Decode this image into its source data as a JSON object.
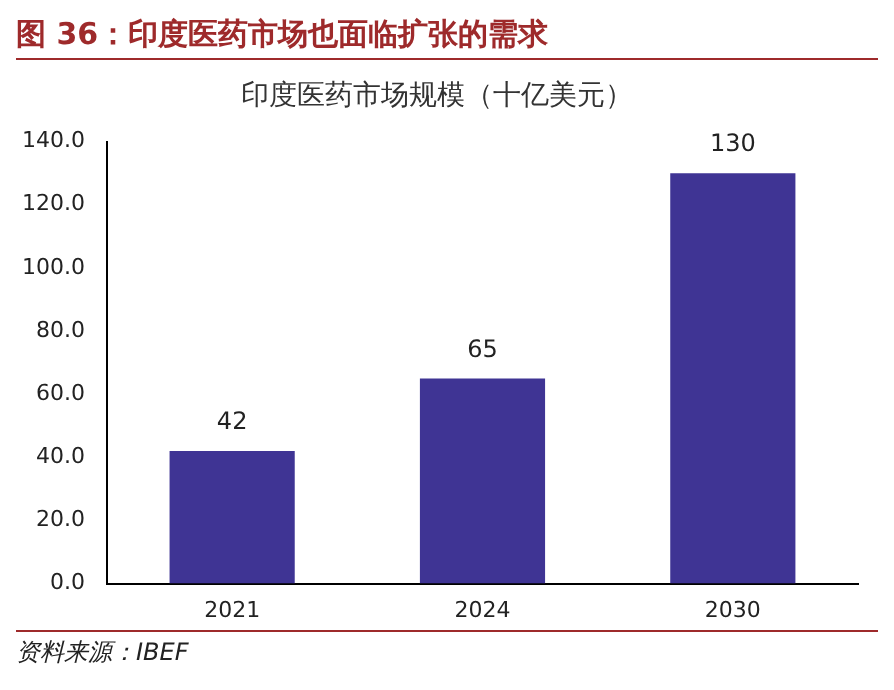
{
  "chart_data": {
    "type": "bar",
    "title": "图 36：印度医药市场也面临扩张的需求",
    "subtitle": "印度医药市场规模（十亿美元）",
    "categories": [
      "2021",
      "2024",
      "2030"
    ],
    "series": [
      {
        "color": "#3f3494",
        "values": [
          42,
          65,
          130
        ]
      }
    ],
    "ylim": [
      0,
      140
    ],
    "yticks": [
      {
        "value": 0,
        "label": "0.0"
      },
      {
        "value": 20,
        "label": "20.0"
      },
      {
        "value": 40,
        "label": "40.0"
      },
      {
        "value": 60,
        "label": "60.0"
      },
      {
        "value": 80,
        "label": "80.0"
      },
      {
        "value": 100,
        "label": "100.0"
      },
      {
        "value": 120,
        "label": "120.0"
      },
      {
        "value": 140,
        "label": "140.0"
      }
    ],
    "data_labels": true,
    "grid": false,
    "legend": false,
    "annotations": [
      "资料来源：IBEF"
    ]
  }
}
